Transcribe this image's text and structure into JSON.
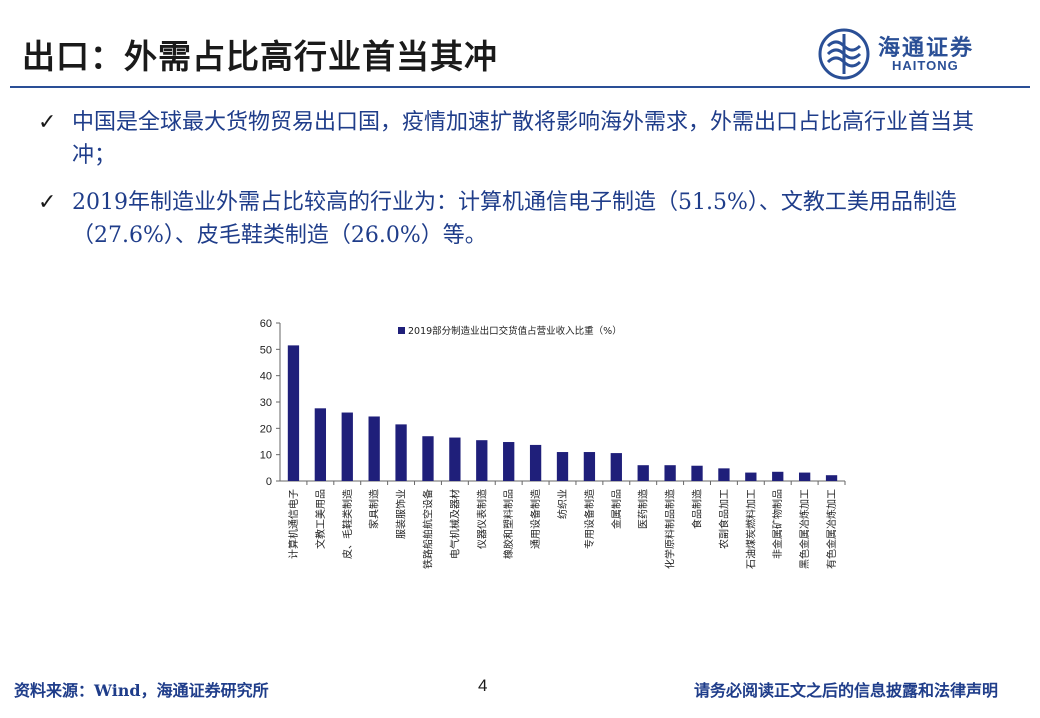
{
  "slide": {
    "title": "出口：外需占比高行业首当其冲",
    "logo_cn": "海通证券",
    "logo_en": "HAITONG",
    "bullets": [
      {
        "mark": "✓",
        "text": "中国是全球最大货物贸易出口国，疫情加速扩散将影响海外需求，外需出口占比高行业首当其冲；"
      },
      {
        "mark": "✓",
        "text": "2019年制造业外需占比较高的行业为：计算机通信电子制造（51.5%）、文教工美用品制造（27.6%）、皮毛鞋类制造（26.0%）等。"
      }
    ],
    "footer": {
      "source": "资料来源：Wind，海通证券研究所",
      "page": "4",
      "disclaimer": "请务必阅读正文之后的信息披露和法律声明"
    }
  },
  "colors": {
    "accent": "#2a4f96",
    "bar": "#1f1f7a",
    "text_blue": "#1f3d8a"
  },
  "chart_data": {
    "type": "bar",
    "categories": [
      "计算机通信电子",
      "文教工美用品",
      "皮、毛鞋类制造",
      "家具制造",
      "服装服饰业",
      "铁路船舶航空设备",
      "电气机械及器材",
      "仪器仪表制造",
      "橡胶和塑料制品",
      "通用设备制造",
      "纺织业",
      "专用设备制造",
      "金属制品",
      "医药制造",
      "化学原料制品制造",
      "食品制造",
      "农副食品加工",
      "石油煤炭燃料加工",
      "非金属矿物制品",
      "黑色金属冶炼加工",
      "有色金属冶炼加工"
    ],
    "series": [
      {
        "name": "2019部分制造业出口交货值占营业收入比重（%）",
        "values": [
          51.5,
          27.6,
          26.0,
          24.5,
          21.5,
          17.0,
          16.5,
          15.5,
          14.8,
          13.7,
          11.0,
          11.0,
          10.6,
          6.0,
          6.0,
          5.8,
          4.8,
          3.2,
          3.5,
          3.2,
          2.2
        ]
      }
    ],
    "ylim": [
      0,
      60
    ],
    "yticks": [
      "0",
      "10",
      "20",
      "30",
      "40",
      "50",
      "60"
    ],
    "grid": false,
    "legend_position": "top"
  }
}
